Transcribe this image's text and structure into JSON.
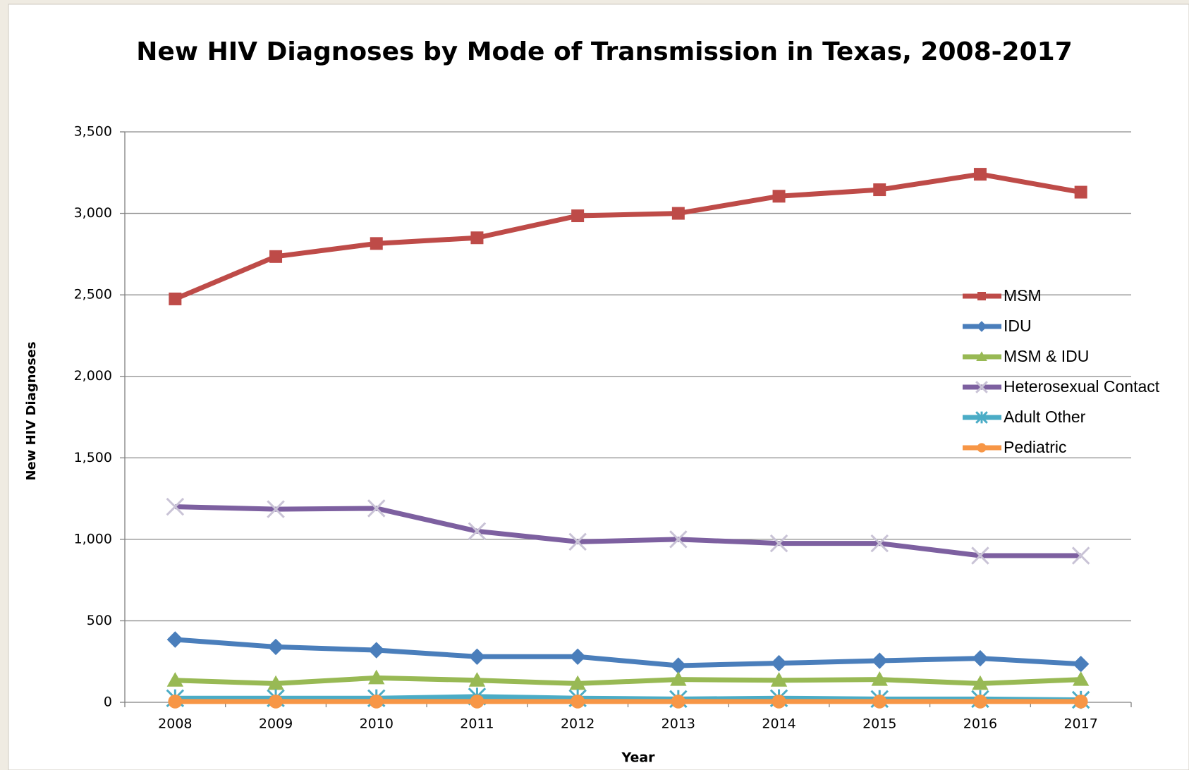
{
  "chart_data": {
    "type": "line",
    "title": "New HIV Diagnoses by Mode of Transmission in Texas, 2008-2017",
    "xlabel": "Year",
    "ylabel": "New HIV Diagnoses",
    "categories": [
      "2008",
      "2009",
      "2010",
      "2011",
      "2012",
      "2013",
      "2014",
      "2015",
      "2016",
      "2017"
    ],
    "series": [
      {
        "name": "MSM",
        "color": "#be4b48",
        "marker": "square",
        "values": [
          2475,
          2735,
          2815,
          2850,
          2985,
          3000,
          3105,
          3145,
          3240,
          3130
        ]
      },
      {
        "name": "IDU",
        "color": "#4a7ebb",
        "marker": "diamond",
        "values": [
          385,
          340,
          320,
          280,
          280,
          225,
          240,
          255,
          270,
          235
        ]
      },
      {
        "name": "MSM & IDU",
        "color": "#98b954",
        "marker": "triangle",
        "values": [
          135,
          115,
          150,
          135,
          115,
          140,
          135,
          140,
          115,
          140
        ]
      },
      {
        "name": "Heterosexual Contact",
        "color": "#7d60a0",
        "marker": "x",
        "values": [
          1200,
          1185,
          1190,
          1050,
          985,
          1000,
          975,
          975,
          900,
          900
        ]
      },
      {
        "name": "Adult Other",
        "color": "#4bacc6",
        "marker": "star",
        "values": [
          25,
          25,
          25,
          35,
          25,
          20,
          25,
          20,
          20,
          15
        ]
      },
      {
        "name": "Pediatric",
        "color": "#f79646",
        "marker": "circle",
        "values": [
          5,
          5,
          5,
          5,
          5,
          5,
          5,
          5,
          5,
          5
        ]
      }
    ],
    "ylim": [
      0,
      3500
    ],
    "yticks": [
      0,
      {
        "value": 500,
        "label": "500"
      },
      {
        "value": 1000,
        "label": "1,000"
      },
      {
        "value": 1500,
        "label": "1,500"
      },
      {
        "value": 2000,
        "label": "2,000"
      },
      {
        "value": 2500,
        "label": "2,500"
      },
      {
        "value": 3000,
        "label": "3,000"
      },
      {
        "value": 3500,
        "label": "3,500"
      }
    ],
    "grid": true,
    "legend": "right"
  }
}
